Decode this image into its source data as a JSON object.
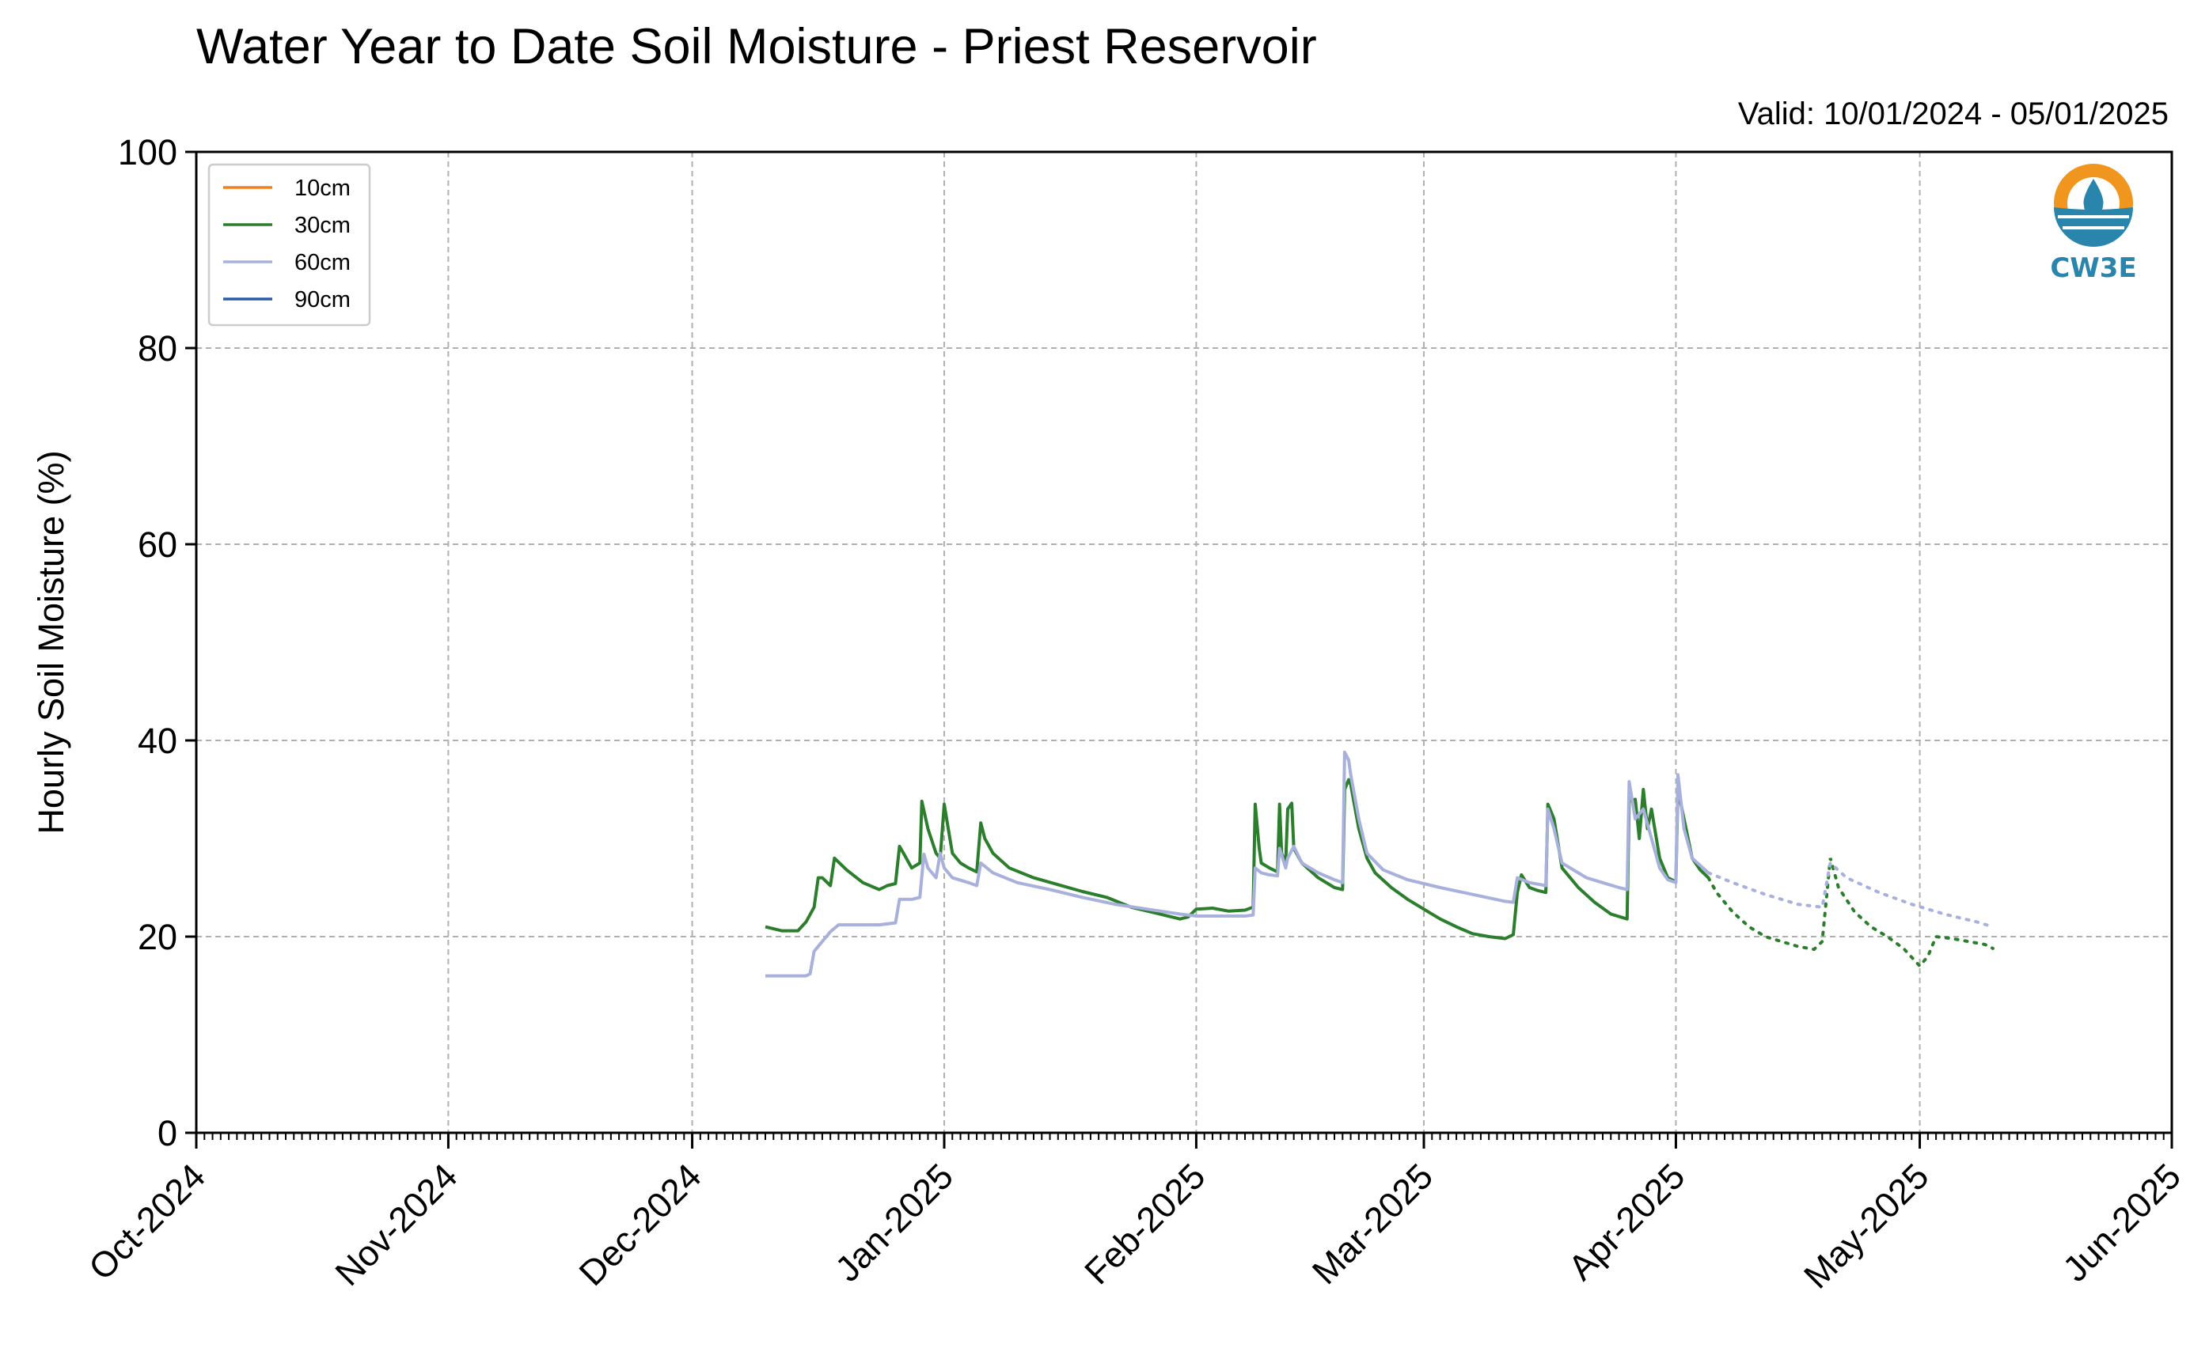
{
  "title": "Water Year to Date Soil Moisture - Priest Reservoir",
  "valid_text": "Valid: 10/01/2024 - 05/01/2025",
  "logo_text": "CW3E",
  "chart_data": {
    "type": "line",
    "title": "Water Year to Date Soil Moisture - Priest Reservoir",
    "ylabel": "Hourly Soil Moisture (%)",
    "xlabel": "",
    "ylim": [
      0,
      100
    ],
    "xlim": [
      "2024-10-01",
      "2025-06-01"
    ],
    "y_ticks": [
      0,
      20,
      40,
      60,
      80,
      100
    ],
    "x_ticks": [
      {
        "date": "2024-10-01",
        "label": "Oct-2024"
      },
      {
        "date": "2024-11-01",
        "label": "Nov-2024"
      },
      {
        "date": "2024-12-01",
        "label": "Dec-2024"
      },
      {
        "date": "2025-01-01",
        "label": "Jan-2025"
      },
      {
        "date": "2025-02-01",
        "label": "Feb-2025"
      },
      {
        "date": "2025-03-01",
        "label": "Mar-2025"
      },
      {
        "date": "2025-04-01",
        "label": "Apr-2025"
      },
      {
        "date": "2025-05-01",
        "label": "May-2025"
      },
      {
        "date": "2025-06-01",
        "label": "Jun-2025"
      }
    ],
    "grid": true,
    "legend_position": "top-left",
    "series": [
      {
        "name": "10cm",
        "color": "#f0821e",
        "points": []
      },
      {
        "name": "30cm",
        "color": "#2b7e2b",
        "points": [
          [
            "2024-12-10",
            21.0
          ],
          [
            "2024-12-12",
            20.6
          ],
          [
            "2024-12-14",
            20.6
          ],
          [
            "2024-12-15",
            21.5
          ],
          [
            "2024-12-16",
            23.0
          ],
          [
            "2024-12-16T12",
            26.0
          ],
          [
            "2024-12-17",
            26.0
          ],
          [
            "2024-12-18",
            25.2
          ],
          [
            "2024-12-18T12",
            28.0
          ],
          [
            "2024-12-20",
            26.8
          ],
          [
            "2024-12-22",
            25.5
          ],
          [
            "2024-12-24",
            24.8
          ],
          [
            "2024-12-25",
            25.2
          ],
          [
            "2024-12-26",
            25.4
          ],
          [
            "2024-12-26T12",
            29.2
          ],
          [
            "2024-12-27",
            28.5
          ],
          [
            "2024-12-28",
            27.0
          ],
          [
            "2024-12-29",
            27.5
          ],
          [
            "2024-12-29T06",
            33.8
          ],
          [
            "2024-12-30",
            31.0
          ],
          [
            "2024-12-31",
            28.5
          ],
          [
            "2024-12-31T12",
            28.0
          ],
          [
            "2025-01-01",
            33.5
          ],
          [
            "2025-01-01T12",
            31.0
          ],
          [
            "2025-01-02",
            28.5
          ],
          [
            "2025-01-03",
            27.5
          ],
          [
            "2025-01-04",
            27.0
          ],
          [
            "2025-01-05",
            26.6
          ],
          [
            "2025-01-05T12",
            31.6
          ],
          [
            "2025-01-06",
            30.0
          ],
          [
            "2025-01-07",
            28.5
          ],
          [
            "2025-01-09",
            27.0
          ],
          [
            "2025-01-12",
            26.0
          ],
          [
            "2025-01-15",
            25.3
          ],
          [
            "2025-01-18",
            24.6
          ],
          [
            "2025-01-21",
            24.0
          ],
          [
            "2025-01-24",
            23.0
          ],
          [
            "2025-01-27",
            22.4
          ],
          [
            "2025-01-29",
            22.0
          ],
          [
            "2025-01-30",
            21.8
          ],
          [
            "2025-01-31",
            22.0
          ],
          [
            "2025-02-01",
            22.8
          ],
          [
            "2025-02-03",
            22.9
          ],
          [
            "2025-02-05",
            22.6
          ],
          [
            "2025-02-07",
            22.7
          ],
          [
            "2025-02-08",
            23.0
          ],
          [
            "2025-02-08T06",
            33.5
          ],
          [
            "2025-02-08T18",
            29.0
          ],
          [
            "2025-02-09",
            27.5
          ],
          [
            "2025-02-10",
            27.0
          ],
          [
            "2025-02-11",
            26.6
          ],
          [
            "2025-02-11T06",
            33.5
          ],
          [
            "2025-02-11T12",
            28.5
          ],
          [
            "2025-02-12",
            27.5
          ],
          [
            "2025-02-12T06",
            33.0
          ],
          [
            "2025-02-12T18",
            33.6
          ],
          [
            "2025-02-13",
            29.0
          ],
          [
            "2025-02-14",
            27.5
          ],
          [
            "2025-02-16",
            26.0
          ],
          [
            "2025-02-18",
            25.0
          ],
          [
            "2025-02-19",
            24.8
          ],
          [
            "2025-02-19T06",
            35.0
          ],
          [
            "2025-02-19T18",
            36.0
          ],
          [
            "2025-02-20",
            35.5
          ],
          [
            "2025-02-21",
            31.0
          ],
          [
            "2025-02-22",
            28.0
          ],
          [
            "2025-02-23",
            26.5
          ],
          [
            "2025-02-25",
            25.0
          ],
          [
            "2025-02-27",
            23.8
          ],
          [
            "2025-03-01",
            22.8
          ],
          [
            "2025-03-03",
            21.8
          ],
          [
            "2025-03-05",
            21.0
          ],
          [
            "2025-03-07",
            20.3
          ],
          [
            "2025-03-09",
            20.0
          ],
          [
            "2025-03-11",
            19.8
          ],
          [
            "2025-03-12",
            20.2
          ],
          [
            "2025-03-12T12",
            24.5
          ],
          [
            "2025-03-13",
            26.3
          ],
          [
            "2025-03-14",
            25.0
          ],
          [
            "2025-03-15",
            24.7
          ],
          [
            "2025-03-16",
            24.5
          ],
          [
            "2025-03-16T06",
            33.5
          ],
          [
            "2025-03-17",
            32.0
          ],
          [
            "2025-03-18",
            27.0
          ],
          [
            "2025-03-20",
            25.0
          ],
          [
            "2025-03-22",
            23.5
          ],
          [
            "2025-03-24",
            22.3
          ],
          [
            "2025-03-26",
            21.8
          ],
          [
            "2025-03-26T06",
            33.8
          ],
          [
            "2025-03-27",
            34.0
          ],
          [
            "2025-03-27T12",
            30.0
          ],
          [
            "2025-03-28",
            35.0
          ],
          [
            "2025-03-28T12",
            31.0
          ],
          [
            "2025-03-29",
            33.0
          ],
          [
            "2025-03-30",
            28.0
          ],
          [
            "2025-03-31",
            26.0
          ],
          [
            "2025-04-01",
            25.6
          ],
          [
            "2025-04-01T06",
            35.0
          ],
          [
            "2025-04-02",
            32.0
          ],
          [
            "2025-04-03",
            28.0
          ],
          [
            "2025-04-04",
            26.8
          ],
          [
            "2025-04-05",
            26.0
          ],
          [
            "2025-04-06",
            24.5
          ],
          [
            "2025-04-08",
            22.5
          ],
          [
            "2025-04-10",
            21.0
          ],
          [
            "2025-04-12",
            20.0
          ],
          [
            "2025-04-14",
            19.5
          ],
          [
            "2025-04-16",
            19.0
          ],
          [
            "2025-04-18",
            18.7
          ],
          [
            "2025-04-19",
            19.5
          ],
          [
            "2025-04-20",
            28.0
          ],
          [
            "2025-04-21",
            25.0
          ],
          [
            "2025-04-23",
            22.5
          ],
          [
            "2025-04-25",
            21.0
          ],
          [
            "2025-04-27",
            20.0
          ],
          [
            "2025-04-29",
            18.8
          ],
          [
            "2025-05-01",
            17.0
          ],
          [
            "2025-05-02",
            18.0
          ],
          [
            "2025-05-03",
            20.0
          ],
          [
            "2025-05-05",
            19.8
          ],
          [
            "2025-05-07",
            19.5
          ],
          [
            "2025-05-09",
            19.2
          ],
          [
            "2025-05-10",
            18.8
          ]
        ]
      },
      {
        "name": "60cm",
        "color": "#a8b0dc",
        "points": [
          [
            "2024-12-10",
            16.0
          ],
          [
            "2024-12-13",
            16.0
          ],
          [
            "2024-12-15",
            16.0
          ],
          [
            "2024-12-15T12",
            16.2
          ],
          [
            "2024-12-16",
            18.5
          ],
          [
            "2024-12-17",
            19.5
          ],
          [
            "2024-12-18",
            20.5
          ],
          [
            "2024-12-19",
            21.2
          ],
          [
            "2024-12-22",
            21.2
          ],
          [
            "2024-12-24",
            21.2
          ],
          [
            "2024-12-26",
            21.4
          ],
          [
            "2024-12-26T12",
            23.8
          ],
          [
            "2024-12-28",
            23.8
          ],
          [
            "2024-12-29",
            24.0
          ],
          [
            "2024-12-29T12",
            28.4
          ],
          [
            "2024-12-30",
            27.0
          ],
          [
            "2024-12-31",
            26.0
          ],
          [
            "2024-12-31T12",
            28.5
          ],
          [
            "2025-01-01",
            27.0
          ],
          [
            "2025-01-02",
            26.0
          ],
          [
            "2025-01-04",
            25.5
          ],
          [
            "2025-01-05",
            25.2
          ],
          [
            "2025-01-05T12",
            27.5
          ],
          [
            "2025-01-07",
            26.5
          ],
          [
            "2025-01-10",
            25.5
          ],
          [
            "2025-01-14",
            24.8
          ],
          [
            "2025-01-18",
            24.0
          ],
          [
            "2025-01-22",
            23.3
          ],
          [
            "2025-01-26",
            22.8
          ],
          [
            "2025-01-30",
            22.3
          ],
          [
            "2025-02-01",
            22.1
          ],
          [
            "2025-02-07",
            22.1
          ],
          [
            "2025-02-08",
            22.2
          ],
          [
            "2025-02-08T06",
            27.0
          ],
          [
            "2025-02-09",
            26.5
          ],
          [
            "2025-02-10",
            26.3
          ],
          [
            "2025-02-11",
            26.2
          ],
          [
            "2025-02-11T06",
            29.0
          ],
          [
            "2025-02-12",
            27.0
          ],
          [
            "2025-02-12T06",
            28.0
          ],
          [
            "2025-02-13",
            29.2
          ],
          [
            "2025-02-14",
            27.5
          ],
          [
            "2025-02-16",
            26.5
          ],
          [
            "2025-02-18",
            25.8
          ],
          [
            "2025-02-19",
            25.5
          ],
          [
            "2025-02-19T06",
            38.8
          ],
          [
            "2025-02-19T18",
            38.0
          ],
          [
            "2025-02-20",
            36.5
          ],
          [
            "2025-02-21",
            32.0
          ],
          [
            "2025-02-22",
            28.5
          ],
          [
            "2025-02-24",
            26.8
          ],
          [
            "2025-02-27",
            25.8
          ],
          [
            "2025-03-03",
            25.0
          ],
          [
            "2025-03-07",
            24.3
          ],
          [
            "2025-03-11",
            23.6
          ],
          [
            "2025-03-12",
            23.5
          ],
          [
            "2025-03-12T12",
            26.0
          ],
          [
            "2025-03-14",
            25.5
          ],
          [
            "2025-03-16",
            25.2
          ],
          [
            "2025-03-16T06",
            33.0
          ],
          [
            "2025-03-17",
            31.0
          ],
          [
            "2025-03-18",
            27.5
          ],
          [
            "2025-03-21",
            26.0
          ],
          [
            "2025-03-25",
            25.0
          ],
          [
            "2025-03-26",
            24.8
          ],
          [
            "2025-03-26T06",
            35.8
          ],
          [
            "2025-03-27",
            32.0
          ],
          [
            "2025-03-28",
            33.0
          ],
          [
            "2025-03-29",
            30.0
          ],
          [
            "2025-03-30",
            27.0
          ],
          [
            "2025-03-31",
            25.8
          ],
          [
            "2025-04-01",
            25.5
          ],
          [
            "2025-04-01T06",
            36.5
          ],
          [
            "2025-04-02",
            31.0
          ],
          [
            "2025-04-03",
            28.0
          ],
          [
            "2025-04-05",
            26.5
          ],
          [
            "2025-04-08",
            25.5
          ],
          [
            "2025-04-12",
            24.3
          ],
          [
            "2025-04-16",
            23.3
          ],
          [
            "2025-04-19",
            23.0
          ],
          [
            "2025-04-20",
            27.5
          ],
          [
            "2025-04-22",
            26.0
          ],
          [
            "2025-04-26",
            24.5
          ],
          [
            "2025-04-30",
            23.3
          ],
          [
            "2025-05-04",
            22.3
          ],
          [
            "2025-05-08",
            21.5
          ],
          [
            "2025-05-10",
            21.0
          ]
        ]
      },
      {
        "name": "90cm",
        "color": "#2c5ba8",
        "points": []
      }
    ]
  }
}
